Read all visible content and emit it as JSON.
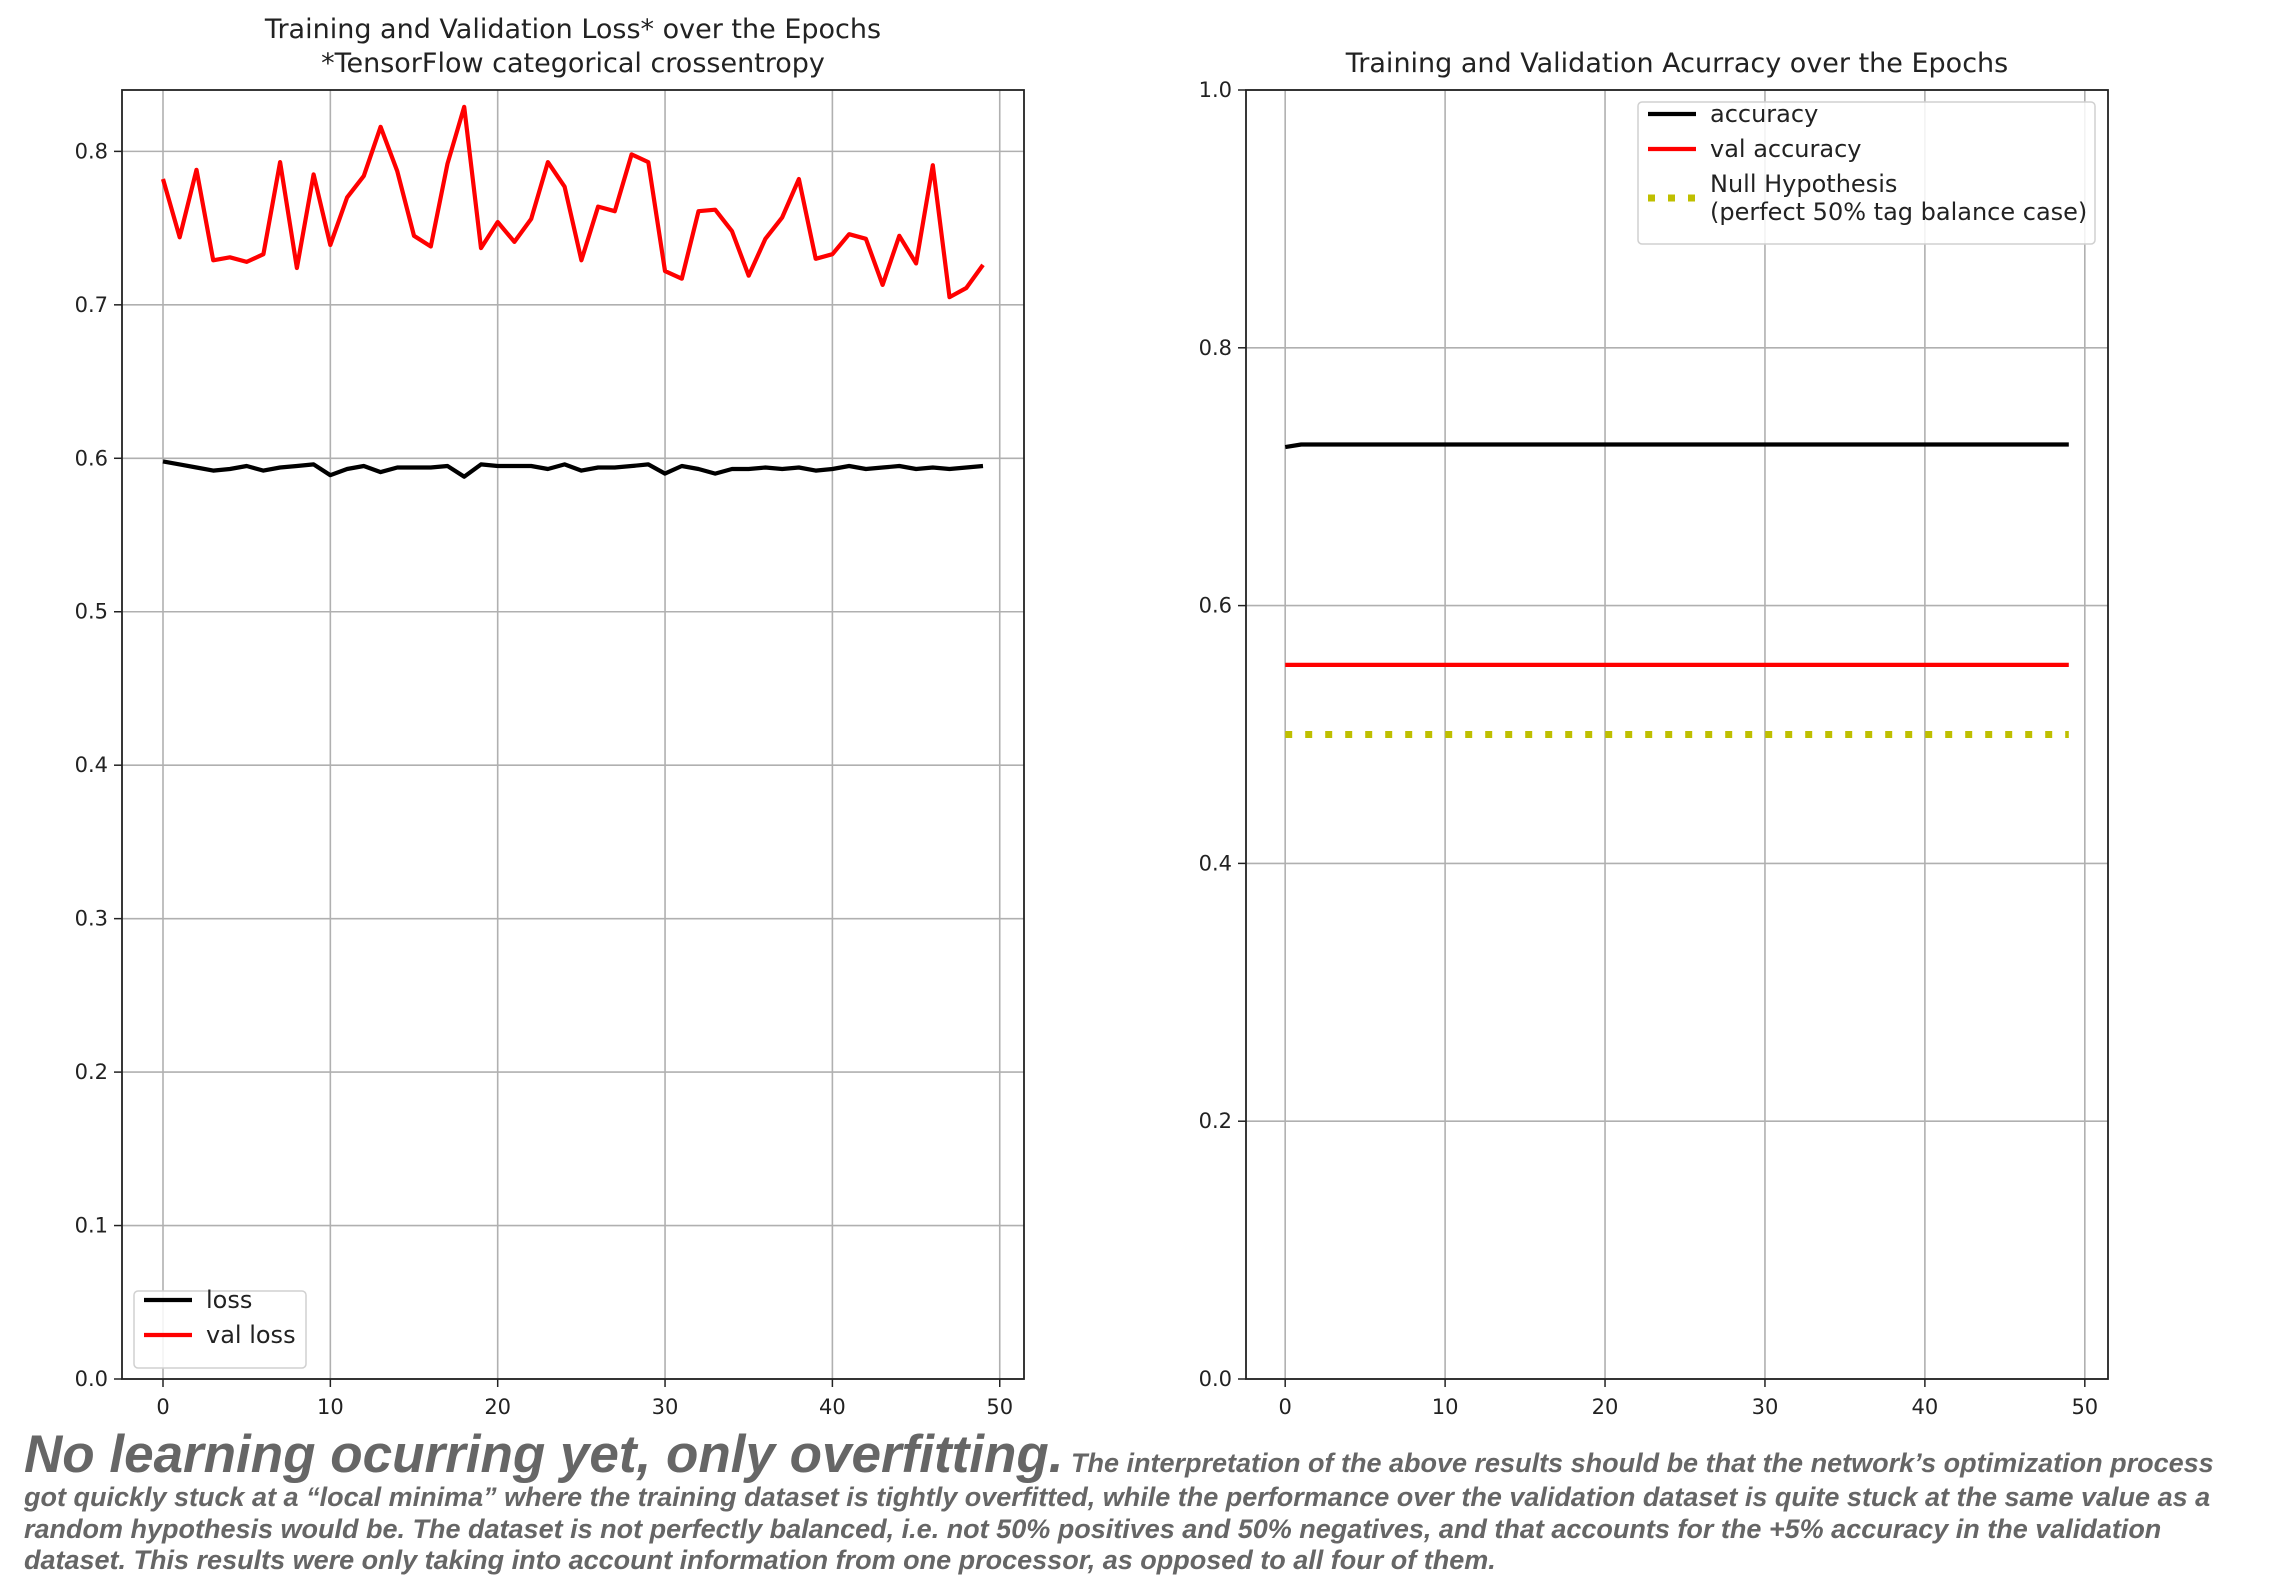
{
  "chart_data": [
    {
      "type": "line",
      "title": "Training and Validation Loss* over the Epochs",
      "subtitle": "*TensorFlow categorical crossentropy",
      "xlabel": "",
      "ylabel": "",
      "xlim": [
        -2.45,
        51.45
      ],
      "ylim": [
        0.0,
        0.84
      ],
      "xticks": [
        0,
        10,
        20,
        30,
        40,
        50
      ],
      "yticks": [
        0.0,
        0.1,
        0.2,
        0.3,
        0.4,
        0.5,
        0.6,
        0.7,
        0.8
      ],
      "grid": true,
      "legend_position": "lower-left",
      "x": [
        0,
        1,
        2,
        3,
        4,
        5,
        6,
        7,
        8,
        9,
        10,
        11,
        12,
        13,
        14,
        15,
        16,
        17,
        18,
        19,
        20,
        21,
        22,
        23,
        24,
        25,
        26,
        27,
        28,
        29,
        30,
        31,
        32,
        33,
        34,
        35,
        36,
        37,
        38,
        39,
        40,
        41,
        42,
        43,
        44,
        45,
        46,
        47,
        48,
        49
      ],
      "series": [
        {
          "name": "loss",
          "color": "#000000",
          "style": "solid",
          "values": [
            0.598,
            0.596,
            0.594,
            0.592,
            0.593,
            0.595,
            0.592,
            0.594,
            0.595,
            0.596,
            0.589,
            0.593,
            0.595,
            0.591,
            0.594,
            0.594,
            0.594,
            0.595,
            0.588,
            0.596,
            0.595,
            0.595,
            0.595,
            0.593,
            0.596,
            0.592,
            0.594,
            0.594,
            0.595,
            0.596,
            0.59,
            0.595,
            0.593,
            0.59,
            0.593,
            0.593,
            0.594,
            0.593,
            0.594,
            0.592,
            0.593,
            0.595,
            0.593,
            0.594,
            0.595,
            0.593,
            0.594,
            0.593,
            0.594,
            0.595
          ]
        },
        {
          "name": "val loss",
          "color": "#ff0000",
          "style": "solid",
          "values": [
            0.782,
            0.744,
            0.788,
            0.729,
            0.731,
            0.728,
            0.733,
            0.793,
            0.724,
            0.785,
            0.739,
            0.77,
            0.784,
            0.816,
            0.787,
            0.745,
            0.738,
            0.792,
            0.829,
            0.737,
            0.754,
            0.741,
            0.756,
            0.793,
            0.777,
            0.729,
            0.764,
            0.761,
            0.798,
            0.793,
            0.722,
            0.717,
            0.761,
            0.762,
            0.748,
            0.719,
            0.743,
            0.757,
            0.782,
            0.73,
            0.733,
            0.746,
            0.743,
            0.713,
            0.745,
            0.727,
            0.791,
            0.705,
            0.711,
            0.726
          ]
        }
      ]
    },
    {
      "type": "line",
      "title": "Training and Validation Acurracy over the Epochs",
      "xlabel": "",
      "ylabel": "",
      "xlim": [
        -2.45,
        51.45
      ],
      "ylim": [
        0.0,
        1.0
      ],
      "xticks": [
        0,
        10,
        20,
        30,
        40,
        50
      ],
      "yticks": [
        0.0,
        0.2,
        0.4,
        0.6,
        0.8,
        1.0
      ],
      "grid": true,
      "legend_position": "top-right",
      "x": [
        0,
        1,
        2,
        3,
        4,
        5,
        6,
        7,
        8,
        9,
        10,
        11,
        12,
        13,
        14,
        15,
        16,
        17,
        18,
        19,
        20,
        21,
        22,
        23,
        24,
        25,
        26,
        27,
        28,
        29,
        30,
        31,
        32,
        33,
        34,
        35,
        36,
        37,
        38,
        39,
        40,
        41,
        42,
        43,
        44,
        45,
        46,
        47,
        48,
        49
      ],
      "series": [
        {
          "name": "accuracy",
          "color": "#000000",
          "style": "solid",
          "values": [
            0.723,
            0.725,
            0.725,
            0.725,
            0.725,
            0.725,
            0.725,
            0.725,
            0.725,
            0.725,
            0.725,
            0.725,
            0.725,
            0.725,
            0.725,
            0.725,
            0.725,
            0.725,
            0.725,
            0.725,
            0.725,
            0.725,
            0.725,
            0.725,
            0.725,
            0.725,
            0.725,
            0.725,
            0.725,
            0.725,
            0.725,
            0.725,
            0.725,
            0.725,
            0.725,
            0.725,
            0.725,
            0.725,
            0.725,
            0.725,
            0.725,
            0.725,
            0.725,
            0.725,
            0.725,
            0.725,
            0.725,
            0.725,
            0.725,
            0.725
          ]
        },
        {
          "name": "val accuracy",
          "color": "#ff0000",
          "style": "solid",
          "values": [
            0.554,
            0.554,
            0.554,
            0.554,
            0.554,
            0.554,
            0.554,
            0.554,
            0.554,
            0.554,
            0.554,
            0.554,
            0.554,
            0.554,
            0.554,
            0.554,
            0.554,
            0.554,
            0.554,
            0.554,
            0.554,
            0.554,
            0.554,
            0.554,
            0.554,
            0.554,
            0.554,
            0.554,
            0.554,
            0.554,
            0.554,
            0.554,
            0.554,
            0.554,
            0.554,
            0.554,
            0.554,
            0.554,
            0.554,
            0.554,
            0.554,
            0.554,
            0.554,
            0.554,
            0.554,
            0.554,
            0.554,
            0.554,
            0.554,
            0.554
          ]
        },
        {
          "name": "Null Hypothesis",
          "name_line2": "(perfect 50% tag balance case)",
          "color": "#bfbf00",
          "style": "dotted",
          "values": [
            0.5,
            0.5,
            0.5,
            0.5,
            0.5,
            0.5,
            0.5,
            0.5,
            0.5,
            0.5,
            0.5,
            0.5,
            0.5,
            0.5,
            0.5,
            0.5,
            0.5,
            0.5,
            0.5,
            0.5,
            0.5,
            0.5,
            0.5,
            0.5,
            0.5,
            0.5,
            0.5,
            0.5,
            0.5,
            0.5,
            0.5,
            0.5,
            0.5,
            0.5,
            0.5,
            0.5,
            0.5,
            0.5,
            0.5,
            0.5,
            0.5,
            0.5,
            0.5,
            0.5,
            0.5,
            0.5,
            0.5,
            0.5,
            0.5,
            0.5
          ]
        }
      ]
    }
  ],
  "caption": {
    "headline": "No learning ocurring yet, only overfitting.",
    "body": "The interpretation of the above results should be that the network’s optimization process got quickly stuck at a “local minima” where the training dataset is tightly overfitted, while the performance over the validation dataset is quite stuck at the same value as a random hypothesis would be. The dataset is not perfectly balanced, i.e. not 50% positives and 50% negatives, and that accounts for the +5% accuracy in the validation dataset. This results were only taking into account information from one processor, as opposed to all four of them."
  }
}
